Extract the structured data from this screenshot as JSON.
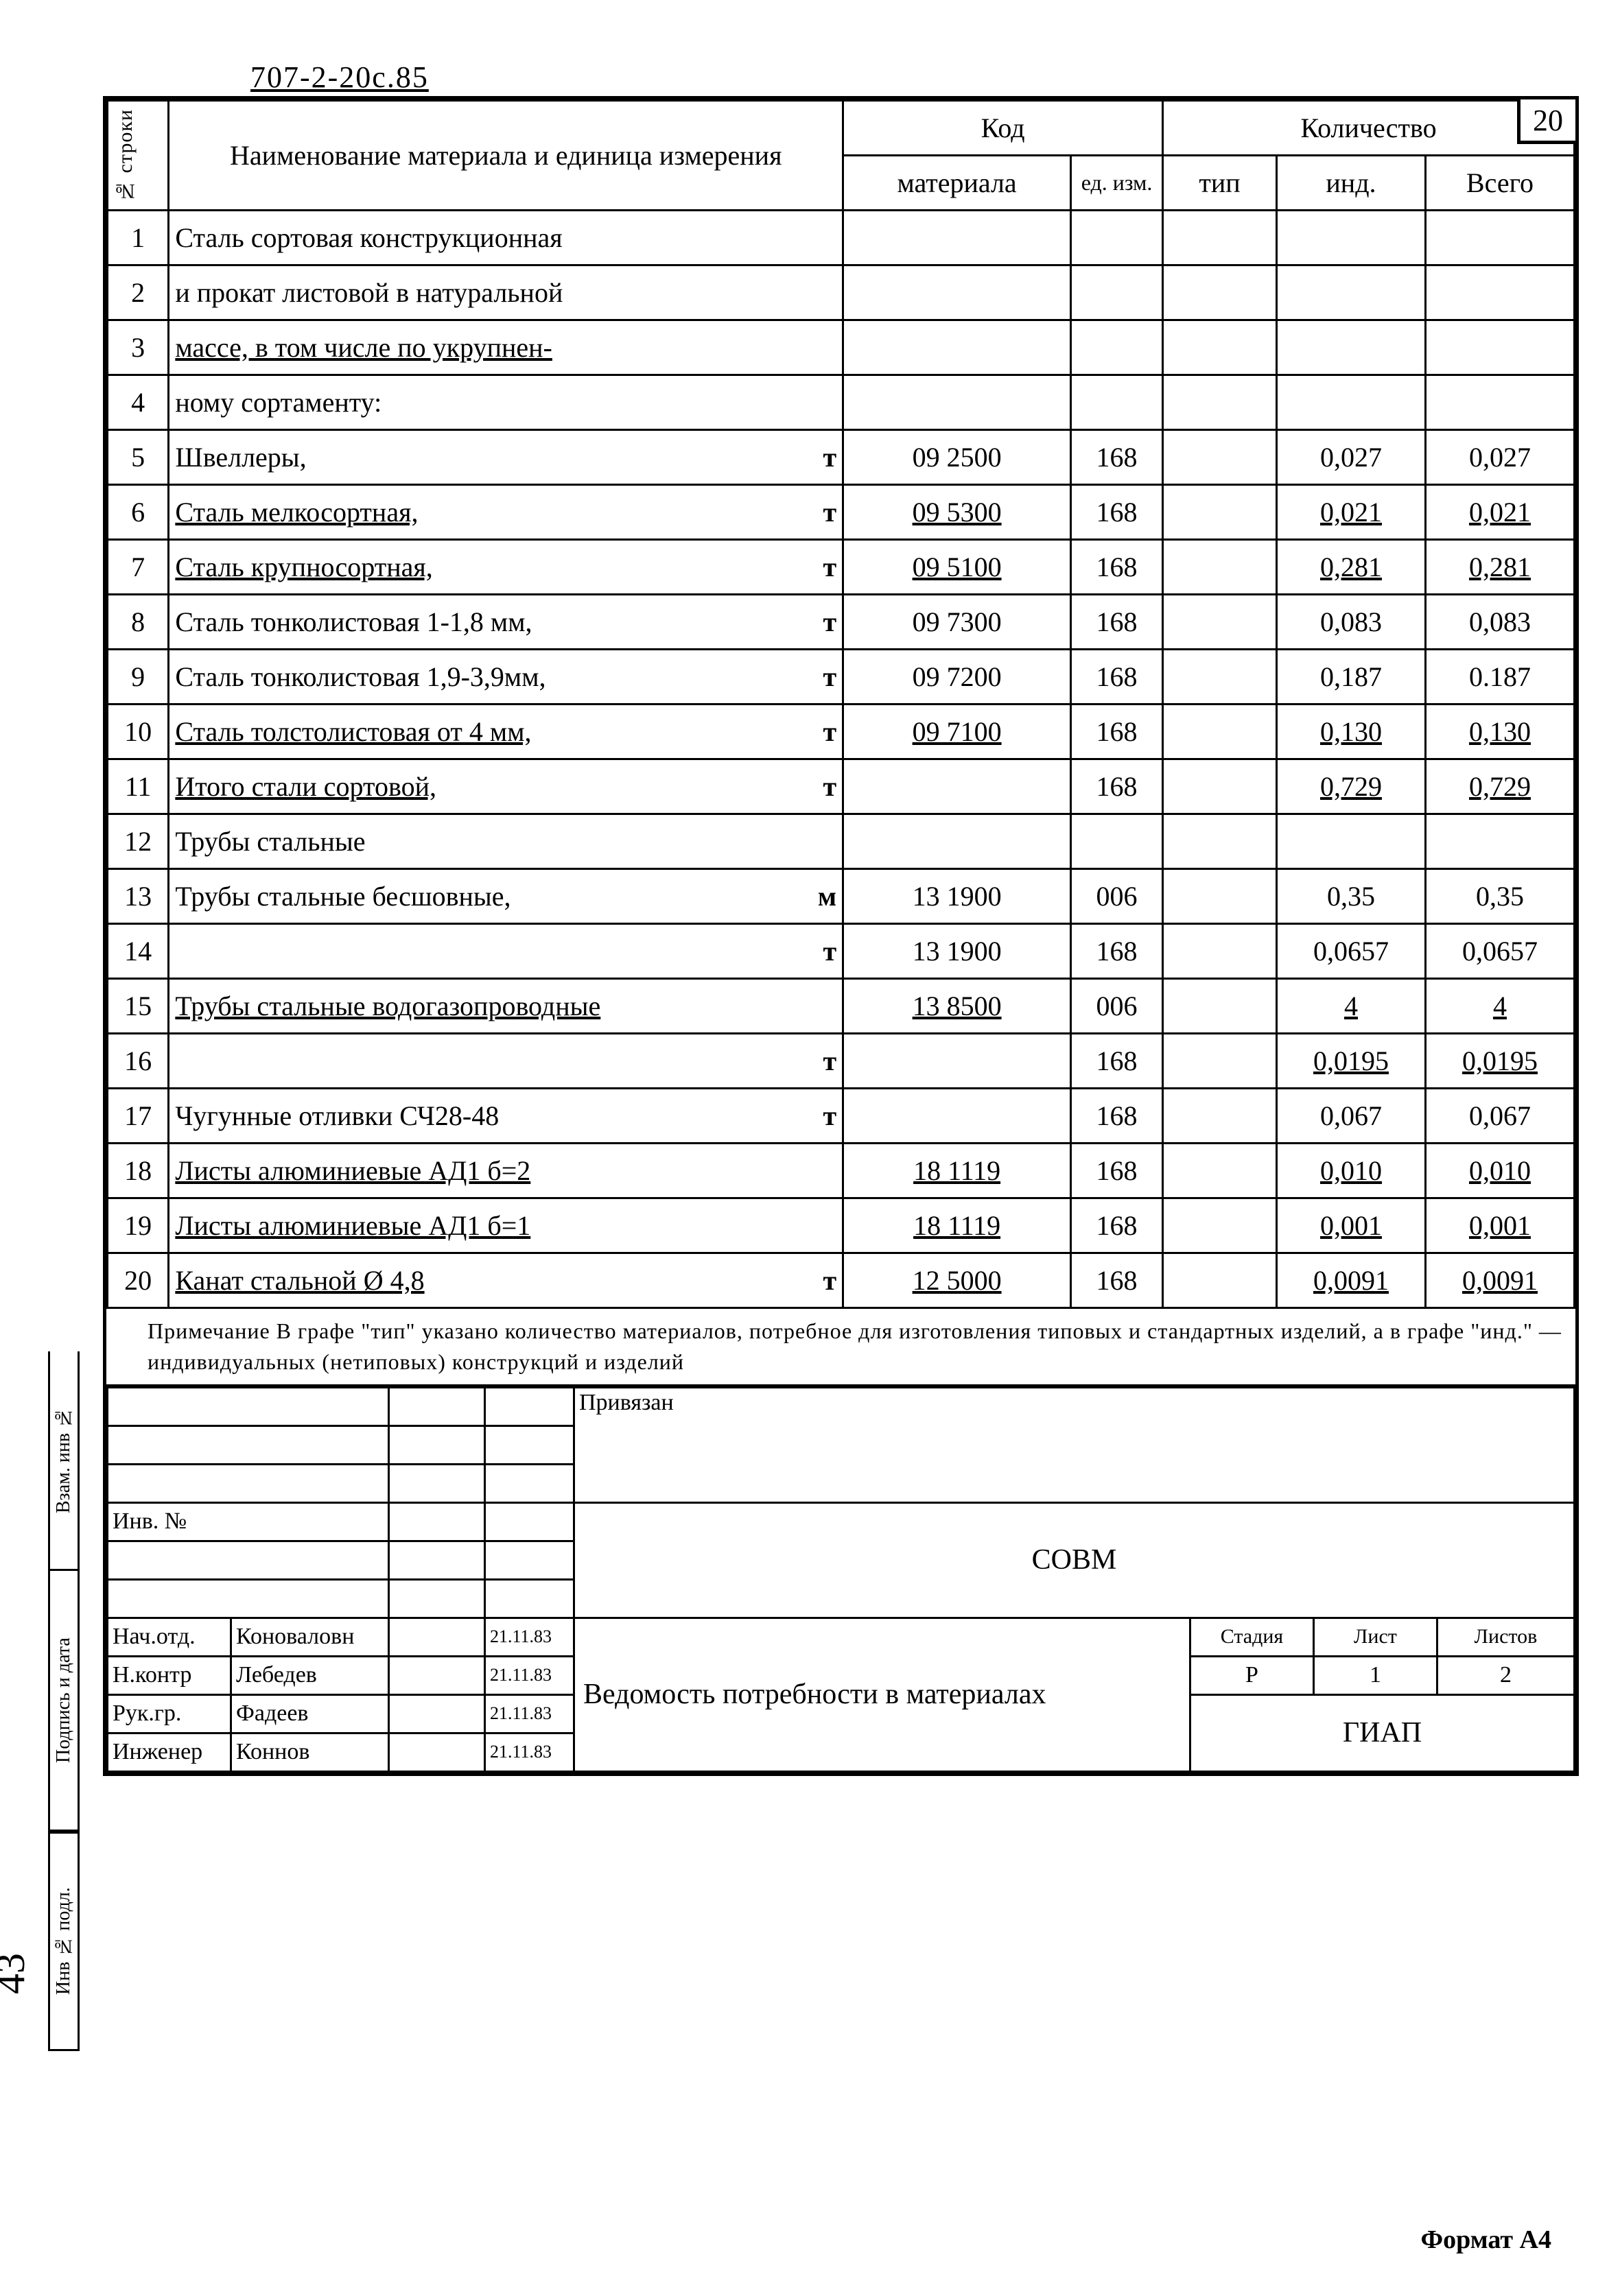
{
  "doc_number": "707-2-20с.85",
  "page_num_top": "20",
  "page_num_side": "43",
  "format": "Формат А4",
  "headers": {
    "row_col": "№ строки",
    "name": "Наименование материала и единица измерения",
    "code_group": "Код",
    "qty_group": "Количество",
    "mat_code": "материала",
    "unit": "ед. изм.",
    "type": "тип",
    "ind": "инд.",
    "total": "Всего"
  },
  "rows": [
    {
      "n": "1",
      "name": "Сталь сортовая конструкционная",
      "mat": "",
      "unit": "",
      "type": "",
      "ind": "",
      "total": ""
    },
    {
      "n": "2",
      "name": "и прокат листовой в натуральной",
      "mat": "",
      "unit": "",
      "type": "",
      "ind": "",
      "total": ""
    },
    {
      "n": "3",
      "name": "массе, в том числе по укрупнен-",
      "mat": "",
      "unit": "",
      "type": "",
      "ind": "",
      "total": "",
      "u": true
    },
    {
      "n": "4",
      "name": "ному сортаменту:",
      "mat": "",
      "unit": "",
      "type": "",
      "ind": "",
      "total": ""
    },
    {
      "n": "5",
      "name": "Швеллеры,",
      "suffix": "т",
      "mat": "09 2500",
      "unit": "168",
      "type": "",
      "ind": "0,027",
      "total": "0,027"
    },
    {
      "n": "6",
      "name": "Сталь мелкосортная,",
      "suffix": "т",
      "mat": "09 5300",
      "unit": "168",
      "type": "",
      "ind": "0,021",
      "total": "0,021",
      "u": true
    },
    {
      "n": "7",
      "name": "Сталь крупносортная,",
      "suffix": "т",
      "mat": "09 5100",
      "unit": "168",
      "type": "",
      "ind": "0,281",
      "total": "0,281",
      "u": true
    },
    {
      "n": "8",
      "name": "Сталь тонколистовая 1-1,8 мм,",
      "suffix": "т",
      "mat": "09 7300",
      "unit": "168",
      "type": "",
      "ind": "0,083",
      "total": "0,083"
    },
    {
      "n": "9",
      "name": "Сталь тонколистовая 1,9-3,9мм,",
      "suffix": "т",
      "mat": "09 7200",
      "unit": "168",
      "type": "",
      "ind": "0,187",
      "total": "0.187"
    },
    {
      "n": "10",
      "name": "Сталь толстолистовая от 4 мм,",
      "suffix": "т",
      "mat": "09 7100",
      "unit": "168",
      "type": "",
      "ind": "0,130",
      "total": "0,130",
      "u": true
    },
    {
      "n": "11",
      "name": "Итого стали сортовой,",
      "suffix": "т",
      "mat": "",
      "unit": "168",
      "type": "",
      "ind": "0,729",
      "total": "0,729",
      "u": true
    },
    {
      "n": "12",
      "name": "Трубы стальные",
      "mat": "",
      "unit": "",
      "type": "",
      "ind": "",
      "total": ""
    },
    {
      "n": "13",
      "name": "Трубы стальные бесшовные,",
      "suffix": "м",
      "mat": "13 1900",
      "unit": "006",
      "type": "",
      "ind": "0,35",
      "total": "0,35"
    },
    {
      "n": "14",
      "name": "",
      "suffix": "т",
      "mat": "13 1900",
      "unit": "168",
      "type": "",
      "ind": "0,0657",
      "total": "0,0657"
    },
    {
      "n": "15",
      "name": "Трубы стальные водогазопроводные",
      "mat": "13 8500",
      "unit": "006",
      "type": "",
      "ind": "4",
      "total": "4",
      "u": true
    },
    {
      "n": "16",
      "name": "",
      "suffix": "т",
      "mat": "",
      "unit": "168",
      "type": "",
      "ind": "0,0195",
      "total": "0,0195",
      "u": true
    },
    {
      "n": "17",
      "name": "Чугунные отливки СЧ28-48",
      "suffix": "т",
      "mat": "",
      "unit": "168",
      "type": "",
      "ind": "0,067",
      "total": "0,067"
    },
    {
      "n": "18",
      "name": "Листы алюминиевые АД1 б=2",
      "mat": "18 1119",
      "unit": "168",
      "type": "",
      "ind": "0,010",
      "total": "0,010",
      "u": true
    },
    {
      "n": "19",
      "name": "Листы алюминиевые АД1 б=1",
      "mat": "18 1119",
      "unit": "168",
      "type": "",
      "ind": "0,001",
      "total": "0,001",
      "u": true
    },
    {
      "n": "20",
      "name": "Канат стальной Ø 4,8",
      "suffix": "т",
      "mat": "12 5000",
      "unit": "168",
      "type": "",
      "ind": "0,0091",
      "total": "0,0091",
      "u": true
    }
  ],
  "note": "Примечание В графе \"тип\" указано количество материалов, потребное для изготовления типовых и стандартных изделий, а в графе \"инд.\" — индивидуальных (нетиповых) конструкций и изделий",
  "stamp": {
    "privyazan": "Привязан",
    "inv_no": "Инв. №",
    "org": "СОВМ",
    "doc_title": "Ведомость потребности в материалах",
    "stage_h": "Стадия",
    "sheet_h": "Лист",
    "sheets_h": "Листов",
    "stage": "Р",
    "sheet": "1",
    "sheets": "2",
    "company": "ГИАП",
    "signers": [
      {
        "role": "Нач.отд.",
        "name": "Коноваловн",
        "date": "21.11.83"
      },
      {
        "role": "Н.контр",
        "name": "Лебедев",
        "date": "21.11.83"
      },
      {
        "role": "Рук.гр.",
        "name": "Фадеев",
        "date": "21.11.83"
      },
      {
        "role": "Инженер",
        "name": "Коннов",
        "date": "21.11.83"
      }
    ]
  },
  "side_labels": [
    "Взам. инв №",
    "Подпись и дата",
    "Инв № подл."
  ]
}
